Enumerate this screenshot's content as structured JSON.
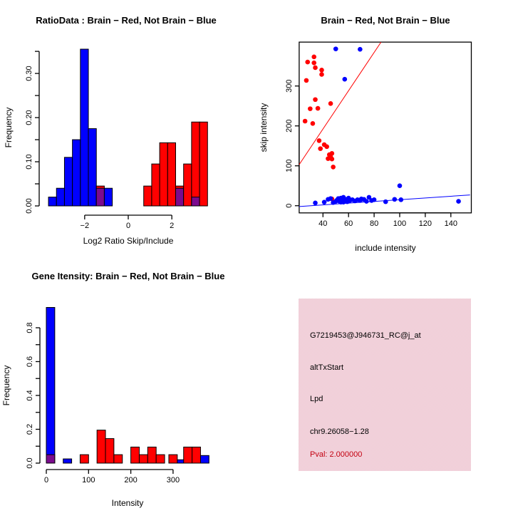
{
  "colors": {
    "brain_red": "#FF0000",
    "not_brain_blue": "#0000FF",
    "overlap_purple": "#7B0B8E",
    "axis_black": "#000000",
    "pval_red": "#C30010",
    "info_panel_pink": "#FFC0CB",
    "info_panel_pink_alt": "#E3E0E8",
    "background": "#FFFFFF"
  },
  "chart_data": [
    {
      "id": "ratio_histogram",
      "type": "bar",
      "title": "RatioData : Brain − Red, Not Brain − Blue",
      "xlabel": "Log2 Ratio Skip/Include",
      "ylabel": "Frequency",
      "xlim": [
        -3.76,
        3.76
      ],
      "ylim": [
        0,
        0.355
      ],
      "grid": false,
      "xticks": [
        {
          "v": -2,
          "label": "−2"
        },
        {
          "v": 0,
          "label": "0"
        },
        {
          "v": 2,
          "label": "2"
        }
      ],
      "yticks": [
        {
          "v": 0.0,
          "label": "0.00"
        },
        {
          "v": 0.05
        },
        {
          "v": 0.1,
          "label": "0.10"
        },
        {
          "v": 0.15
        },
        {
          "v": 0.2,
          "label": "0.20"
        },
        {
          "v": 0.25
        },
        {
          "v": 0.3,
          "label": "0.30"
        },
        {
          "v": 0.35
        }
      ],
      "bars": [
        {
          "x0": -3.66,
          "x1": -3.294,
          "h": 0.02,
          "series": "not_brain"
        },
        {
          "x0": -3.294,
          "x1": -2.928,
          "h": 0.04,
          "series": "not_brain"
        },
        {
          "x0": -2.928,
          "x1": -2.562,
          "h": 0.11,
          "series": "not_brain"
        },
        {
          "x0": -2.562,
          "x1": -2.196,
          "h": 0.15,
          "series": "not_brain"
        },
        {
          "x0": -2.196,
          "x1": -1.83,
          "h": 0.355,
          "series": "not_brain"
        },
        {
          "x0": -1.83,
          "x1": -1.464,
          "h": 0.175,
          "series": "not_brain"
        },
        {
          "x0": -1.464,
          "x1": -1.098,
          "h": 0.045,
          "series": "brain",
          "overlap": 0.04
        },
        {
          "x0": -1.098,
          "x1": -0.732,
          "h": 0.04,
          "series": "not_brain"
        },
        {
          "x0": 0.71,
          "x1": 1.076,
          "h": 0.045,
          "series": "brain"
        },
        {
          "x0": 1.076,
          "x1": 1.442,
          "h": 0.095,
          "series": "brain"
        },
        {
          "x0": 1.442,
          "x1": 1.808,
          "h": 0.143,
          "series": "brain"
        },
        {
          "x0": 1.808,
          "x1": 2.174,
          "h": 0.143,
          "series": "brain"
        },
        {
          "x0": 2.174,
          "x1": 2.54,
          "h": 0.045,
          "series": "brain",
          "overlap": 0.04
        },
        {
          "x0": 2.54,
          "x1": 2.906,
          "h": 0.095,
          "series": "brain"
        },
        {
          "x0": 2.906,
          "x1": 3.272,
          "h": 0.19,
          "series": "brain",
          "overlap": 0.02
        },
        {
          "x0": 3.272,
          "x1": 3.638,
          "h": 0.19,
          "series": "brain"
        }
      ]
    },
    {
      "id": "intensity_scatter",
      "type": "scatter",
      "title": "Brain − Red, Not Brain − Blue",
      "xlabel": "include intensity",
      "ylabel": "skip intensity",
      "xlim": [
        21.4,
        156
      ],
      "ylim": [
        -18,
        410
      ],
      "grid": false,
      "xticks": [
        {
          "v": 40,
          "label": "40"
        },
        {
          "v": 60,
          "label": "60"
        },
        {
          "v": 80,
          "label": "80"
        },
        {
          "v": 100,
          "label": "100"
        },
        {
          "v": 120,
          "label": "120"
        },
        {
          "v": 140,
          "label": "140"
        }
      ],
      "yticks": [
        {
          "v": 0,
          "label": "0"
        },
        {
          "v": 100,
          "label": "100"
        },
        {
          "v": 200,
          "label": "200"
        },
        {
          "v": 300,
          "label": "300"
        }
      ],
      "series": [
        {
          "name": "brain",
          "color_key": "brain_red",
          "points": [
            [
              28,
              360
            ],
            [
              33,
              373
            ],
            [
              33,
              358
            ],
            [
              34,
              346
            ],
            [
              39,
              340
            ],
            [
              39,
              329
            ],
            [
              27,
              314
            ],
            [
              34,
              266
            ],
            [
              46,
              256
            ],
            [
              30,
              243
            ],
            [
              36,
              244
            ],
            [
              26,
              212
            ],
            [
              32,
              206
            ],
            [
              37,
              163
            ],
            [
              41,
              153
            ],
            [
              38,
              143
            ],
            [
              43,
              148
            ],
            [
              45,
              128
            ],
            [
              44,
              118
            ],
            [
              46,
              122
            ],
            [
              47,
              131
            ],
            [
              47,
              117
            ],
            [
              48,
              97
            ],
            [
              47,
              17
            ]
          ]
        },
        {
          "name": "not_brain",
          "color_key": "not_brain_blue",
          "points": [
            [
              50,
              393
            ],
            [
              69,
              392
            ],
            [
              57,
              317
            ],
            [
              100,
              50
            ],
            [
              34,
              7
            ],
            [
              41,
              9
            ],
            [
              44,
              16
            ],
            [
              46,
              18
            ],
            [
              48,
              8
            ],
            [
              50,
              11
            ],
            [
              51,
              14
            ],
            [
              52,
              18
            ],
            [
              53,
              11
            ],
            [
              54,
              19
            ],
            [
              54,
              9
            ],
            [
              55,
              14
            ],
            [
              56,
              21
            ],
            [
              56,
              9
            ],
            [
              57,
              13
            ],
            [
              58,
              16
            ],
            [
              59,
              10
            ],
            [
              60,
              19
            ],
            [
              61,
              13
            ],
            [
              63,
              15
            ],
            [
              65,
              12
            ],
            [
              67,
              15
            ],
            [
              69,
              13
            ],
            [
              70,
              17
            ],
            [
              72,
              16
            ],
            [
              74,
              11
            ],
            [
              76,
              21
            ],
            [
              78,
              13
            ],
            [
              80,
              15
            ],
            [
              89,
              10
            ],
            [
              96,
              16
            ],
            [
              101,
              15
            ],
            [
              146,
              11
            ]
          ]
        }
      ],
      "fit_lines": [
        {
          "name": "brain_fit",
          "color_key": "brain_red",
          "x1": 21.4,
          "y1": 103,
          "x2": 85.4,
          "y2": 410
        },
        {
          "name": "not_brain_fit",
          "color_key": "not_brain_blue",
          "x1": 21.4,
          "y1": -2,
          "x2": 155,
          "y2": 27
        }
      ]
    },
    {
      "id": "gene_intensity_histogram",
      "type": "bar",
      "title": "Gene Itensity: Brain − Red, Not Brain − Blue",
      "xlabel": "Intensity",
      "ylabel": "Frequency",
      "xlim": [
        0,
        385
      ],
      "ylim": [
        0,
        0.92
      ],
      "grid": false,
      "xticks": [
        {
          "v": 0,
          "label": "0"
        },
        {
          "v": 100,
          "label": "100"
        },
        {
          "v": 200,
          "label": "200"
        },
        {
          "v": 300,
          "label": "300"
        }
      ],
      "yticks": [
        {
          "v": 0.0,
          "label": "0.0"
        },
        {
          "v": 0.1
        },
        {
          "v": 0.2,
          "label": "0.2"
        },
        {
          "v": 0.3
        },
        {
          "v": 0.4,
          "label": "0.4"
        },
        {
          "v": 0.5
        },
        {
          "v": 0.6,
          "label": "0.6"
        },
        {
          "v": 0.7
        },
        {
          "v": 0.8,
          "label": "0.8"
        }
      ],
      "bars": [
        {
          "x0": 0,
          "x1": 20,
          "h": 0.92,
          "series": "not_brain",
          "overlap": 0.05
        },
        {
          "x0": 40,
          "x1": 60,
          "h": 0.025,
          "series": "not_brain"
        },
        {
          "x0": 310,
          "x1": 330,
          "h": 0.02,
          "series": "not_brain"
        },
        {
          "x0": 365,
          "x1": 385,
          "h": 0.045,
          "series": "not_brain"
        },
        {
          "x0": 80,
          "x1": 100,
          "h": 0.05,
          "series": "brain"
        },
        {
          "x0": 120,
          "x1": 140,
          "h": 0.195,
          "series": "brain"
        },
        {
          "x0": 140,
          "x1": 160,
          "h": 0.145,
          "series": "brain"
        },
        {
          "x0": 160,
          "x1": 180,
          "h": 0.05,
          "series": "brain"
        },
        {
          "x0": 200,
          "x1": 220,
          "h": 0.095,
          "series": "brain"
        },
        {
          "x0": 220,
          "x1": 240,
          "h": 0.05,
          "series": "brain"
        },
        {
          "x0": 240,
          "x1": 260,
          "h": 0.095,
          "series": "brain"
        },
        {
          "x0": 260,
          "x1": 280,
          "h": 0.05,
          "series": "brain"
        },
        {
          "x0": 290,
          "x1": 310,
          "h": 0.05,
          "series": "brain"
        },
        {
          "x0": 325,
          "x1": 345,
          "h": 0.095,
          "series": "brain"
        },
        {
          "x0": 345,
          "x1": 365,
          "h": 0.095,
          "series": "brain"
        }
      ]
    }
  ],
  "info_panel": {
    "lines": [
      {
        "text": "G7219453@J946731_RC@j_at"
      },
      {
        "text": "altTxStart"
      },
      {
        "text": "Lpd"
      },
      {
        "text": "chr9.26058−1.28"
      },
      {
        "text": "Pval: 2.000000",
        "highlight": true
      }
    ]
  }
}
